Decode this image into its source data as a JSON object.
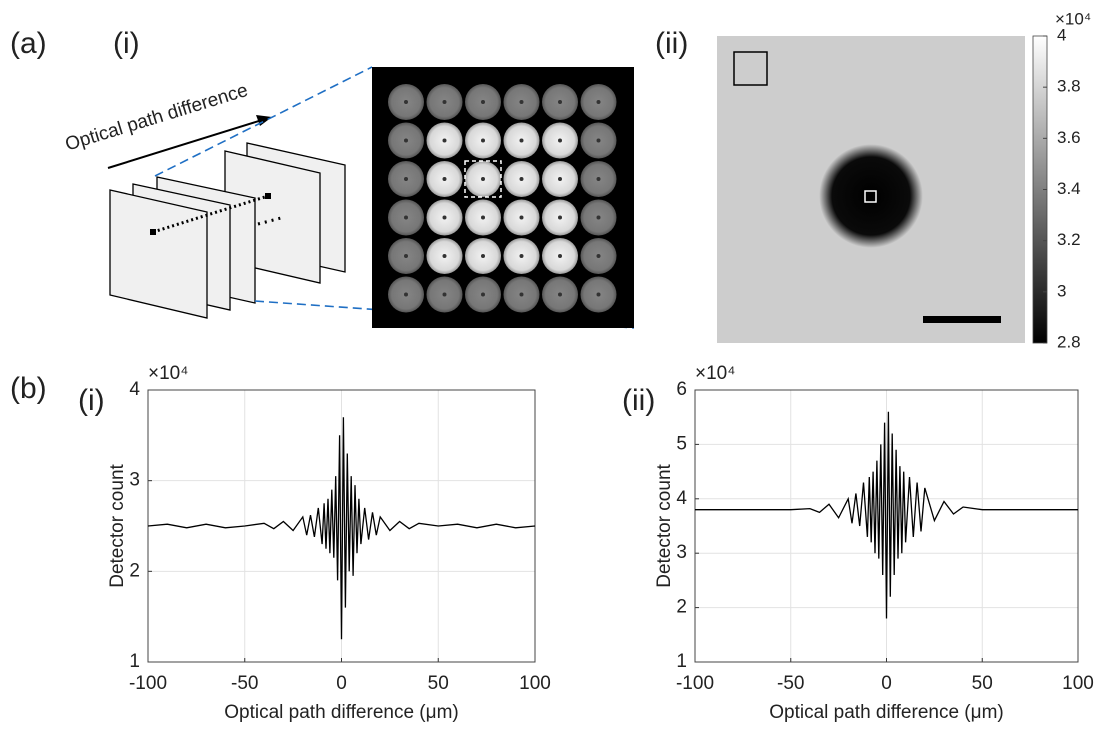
{
  "labels": {
    "a": "(a)",
    "a_i": "(i)",
    "a_ii": "(ii)",
    "b": "(b)",
    "b_i": "(i)",
    "b_ii": "(ii)"
  },
  "diagram": {
    "arrow_label": "Optical path difference"
  },
  "colorbar": {
    "multiplier": "×10⁴",
    "lim": [
      2.8,
      4
    ],
    "ticks": [
      2.8,
      3,
      3.2,
      3.4,
      3.6,
      3.8,
      4
    ]
  },
  "chart_data": [
    {
      "type": "line",
      "multiplier": "×10⁴",
      "xlabel": "Optical path difference (μm)",
      "ylabel": "Detector count",
      "xlim": [
        -100,
        100
      ],
      "xticks": [
        -100,
        -50,
        0,
        50,
        100
      ],
      "ylim": [
        1,
        4
      ],
      "yticks": [
        1,
        2,
        3,
        4
      ],
      "grid": true,
      "x": [
        -100,
        -90,
        -80,
        -70,
        -60,
        -50,
        -40,
        -35,
        -30,
        -25,
        -20,
        -18,
        -16,
        -14,
        -12,
        -10,
        -9,
        -8,
        -7,
        -6,
        -5,
        -4,
        -3,
        -2,
        -1,
        0,
        1,
        2,
        3,
        4,
        5,
        6,
        7,
        8,
        9,
        10,
        12,
        14,
        16,
        18,
        20,
        25,
        30,
        35,
        40,
        50,
        60,
        70,
        80,
        90,
        100
      ],
      "series": [
        {
          "color": "#000000",
          "values": [
            2.5,
            2.52,
            2.48,
            2.52,
            2.48,
            2.5,
            2.53,
            2.47,
            2.55,
            2.45,
            2.6,
            2.4,
            2.62,
            2.38,
            2.7,
            2.3,
            2.75,
            2.25,
            2.8,
            2.2,
            2.9,
            2.15,
            3.05,
            1.9,
            3.5,
            1.25,
            3.7,
            1.6,
            3.3,
            2.0,
            3.05,
            1.95,
            2.95,
            2.2,
            2.8,
            2.3,
            2.7,
            2.35,
            2.65,
            2.4,
            2.6,
            2.45,
            2.55,
            2.47,
            2.53,
            2.5,
            2.52,
            2.48,
            2.52,
            2.48,
            2.5
          ]
        }
      ]
    },
    {
      "type": "line",
      "multiplier": "×10⁴",
      "xlabel": "Optical path difference (μm)",
      "ylabel": "Detector count",
      "xlim": [
        -100,
        100
      ],
      "xticks": [
        -100,
        -50,
        0,
        50,
        100
      ],
      "ylim": [
        1,
        6
      ],
      "yticks": [
        1,
        2,
        3,
        4,
        5,
        6
      ],
      "grid": true,
      "x": [
        -100,
        -90,
        -80,
        -70,
        -60,
        -50,
        -40,
        -35,
        -30,
        -25,
        -20,
        -18,
        -16,
        -14,
        -12,
        -10,
        -9,
        -8,
        -7,
        -6,
        -5,
        -4,
        -3,
        -2,
        -1,
        0,
        1,
        2,
        3,
        4,
        5,
        6,
        7,
        8,
        9,
        10,
        12,
        14,
        16,
        18,
        20,
        25,
        30,
        35,
        40,
        50,
        60,
        70,
        80,
        90,
        100
      ],
      "series": [
        {
          "color": "#000000",
          "values": [
            3.8,
            3.8,
            3.8,
            3.8,
            3.8,
            3.8,
            3.82,
            3.75,
            3.9,
            3.65,
            4.0,
            3.55,
            4.1,
            3.5,
            4.3,
            3.3,
            4.4,
            3.2,
            4.5,
            3.0,
            4.7,
            2.9,
            5.0,
            2.6,
            5.4,
            1.8,
            5.6,
            2.2,
            5.2,
            2.6,
            4.9,
            2.9,
            4.6,
            3.0,
            4.5,
            3.2,
            4.4,
            3.3,
            4.3,
            3.4,
            4.2,
            3.6,
            3.95,
            3.72,
            3.85,
            3.8,
            3.8,
            3.8,
            3.8,
            3.8,
            3.8
          ]
        }
      ]
    }
  ]
}
